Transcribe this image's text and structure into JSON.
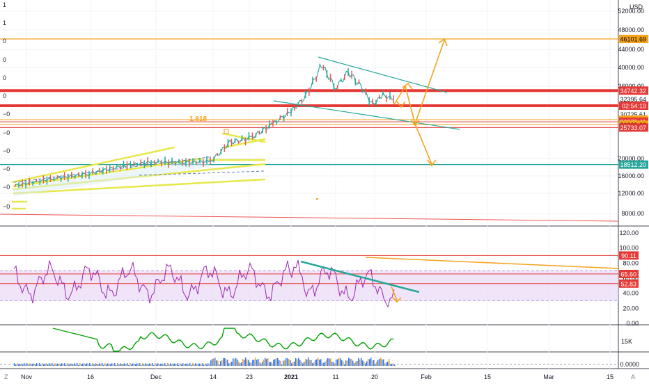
{
  "axis": {
    "currency": "USD",
    "price_ticks": [
      {
        "v": 52000,
        "label": "52000.00"
      },
      {
        "v": 48000,
        "label": "48000.00"
      },
      {
        "v": 44000,
        "label": "44000.00"
      },
      {
        "v": 40000,
        "label": "40000.00"
      },
      {
        "v": 36000,
        "label": "36000.00"
      },
      {
        "v": 20000,
        "label": "20000.00"
      },
      {
        "v": 16000,
        "label": "16000.00"
      },
      {
        "v": 12000,
        "label": "12000.00"
      },
      {
        "v": 8000,
        "label": "8000.00"
      }
    ],
    "price_tags": [
      {
        "v": 46101.69,
        "label": "46101.69",
        "bg": "#f7a21b",
        "fg": "#000000"
      },
      {
        "v": 34742.32,
        "label": "34742.32",
        "bg": "#e53935",
        "fg": "#ffffff"
      },
      {
        "v": 32395.64,
        "label": "32395.64",
        "bg": "#ffffff",
        "fg": "#131722"
      },
      {
        "v": 30725.61,
        "label": "02:54:19",
        "bg": "#e53935",
        "fg": "#ffffff"
      },
      {
        "v": 28600,
        "label": "30725.61",
        "bg": "#ffffff",
        "fg": "#131722"
      },
      {
        "v": 27439.95,
        "label": "27439.95",
        "bg": "#f7a21b",
        "fg": "#000000"
      },
      {
        "v": 26972.41,
        "label": "26972.41",
        "bg": "#e53935",
        "fg": "#ffffff"
      },
      {
        "v": 26329.02,
        "label": "26329.02",
        "bg": "#f7a21b",
        "fg": "#000000"
      },
      {
        "v": 25733.07,
        "label": "25733.07",
        "bg": "#e53935",
        "fg": "#ffffff"
      },
      {
        "v": 18512.2,
        "label": "18512.20",
        "bg": "#26a69a",
        "fg": "#ffffff"
      }
    ],
    "left_ticks": [
      "1",
      "1",
      "0",
      "0",
      "0",
      "0",
      "−0",
      "−0",
      "−0",
      "−0",
      "−0",
      "−0"
    ],
    "dates": [
      "Nov",
      "16",
      "Dec",
      "14",
      "23",
      "2021",
      "11",
      "20",
      "Feb",
      "15",
      "Mar",
      "15"
    ],
    "fib_label": "1.618"
  },
  "rsi": {
    "ticks": [
      "120.00",
      "100.00",
      "80.00",
      "60.00",
      "40.00",
      "20.00",
      "0.00"
    ],
    "tags": [
      {
        "v": 90.11,
        "label": "90.11",
        "bg": "#e53935",
        "fg": "#ffffff"
      },
      {
        "v": 65.6,
        "label": "65.60",
        "bg": "#e53935",
        "fg": "#ffffff"
      },
      {
        "v": 52.83,
        "label": "52.83",
        "bg": "#e53935",
        "fg": "#ffffff"
      }
    ]
  },
  "obv": {
    "ticks": [
      "15K"
    ]
  },
  "vol": {
    "ticks": [
      "0.0000"
    ]
  },
  "footer": {
    "left_icon": "Z",
    "right_icon": "A"
  },
  "chart_data": {
    "type": "line",
    "symbol_currency": "USD",
    "x": [
      "Nov 1",
      "Nov 8",
      "Nov 16",
      "Nov 24",
      "Dec 1",
      "Dec 8",
      "Dec 14",
      "Dec 18",
      "Dec 23",
      "Dec 28",
      "Jan 1",
      "Jan 4",
      "Jan 8",
      "Jan 11",
      "Jan 14",
      "Jan 17",
      "Jan 20",
      "Jan 22",
      "Jan 24"
    ],
    "series": [
      {
        "values": [
          13700,
          15400,
          16500,
          18300,
          19200,
          19000,
          19300,
          22800,
          23600,
          26500,
          29300,
          32500,
          40600,
          35500,
          39000,
          36000,
          31000,
          33500,
          32400
        ]
      }
    ],
    "ylim": [
      5000,
      53000
    ],
    "horizontal_levels": [
      46101.69,
      34742.32,
      32395.64,
      30725.61,
      27439.95,
      26972.41,
      26329.02,
      25733.07,
      18512.2
    ],
    "annotations": [
      "1.618"
    ],
    "grid": true,
    "legend": "none"
  }
}
